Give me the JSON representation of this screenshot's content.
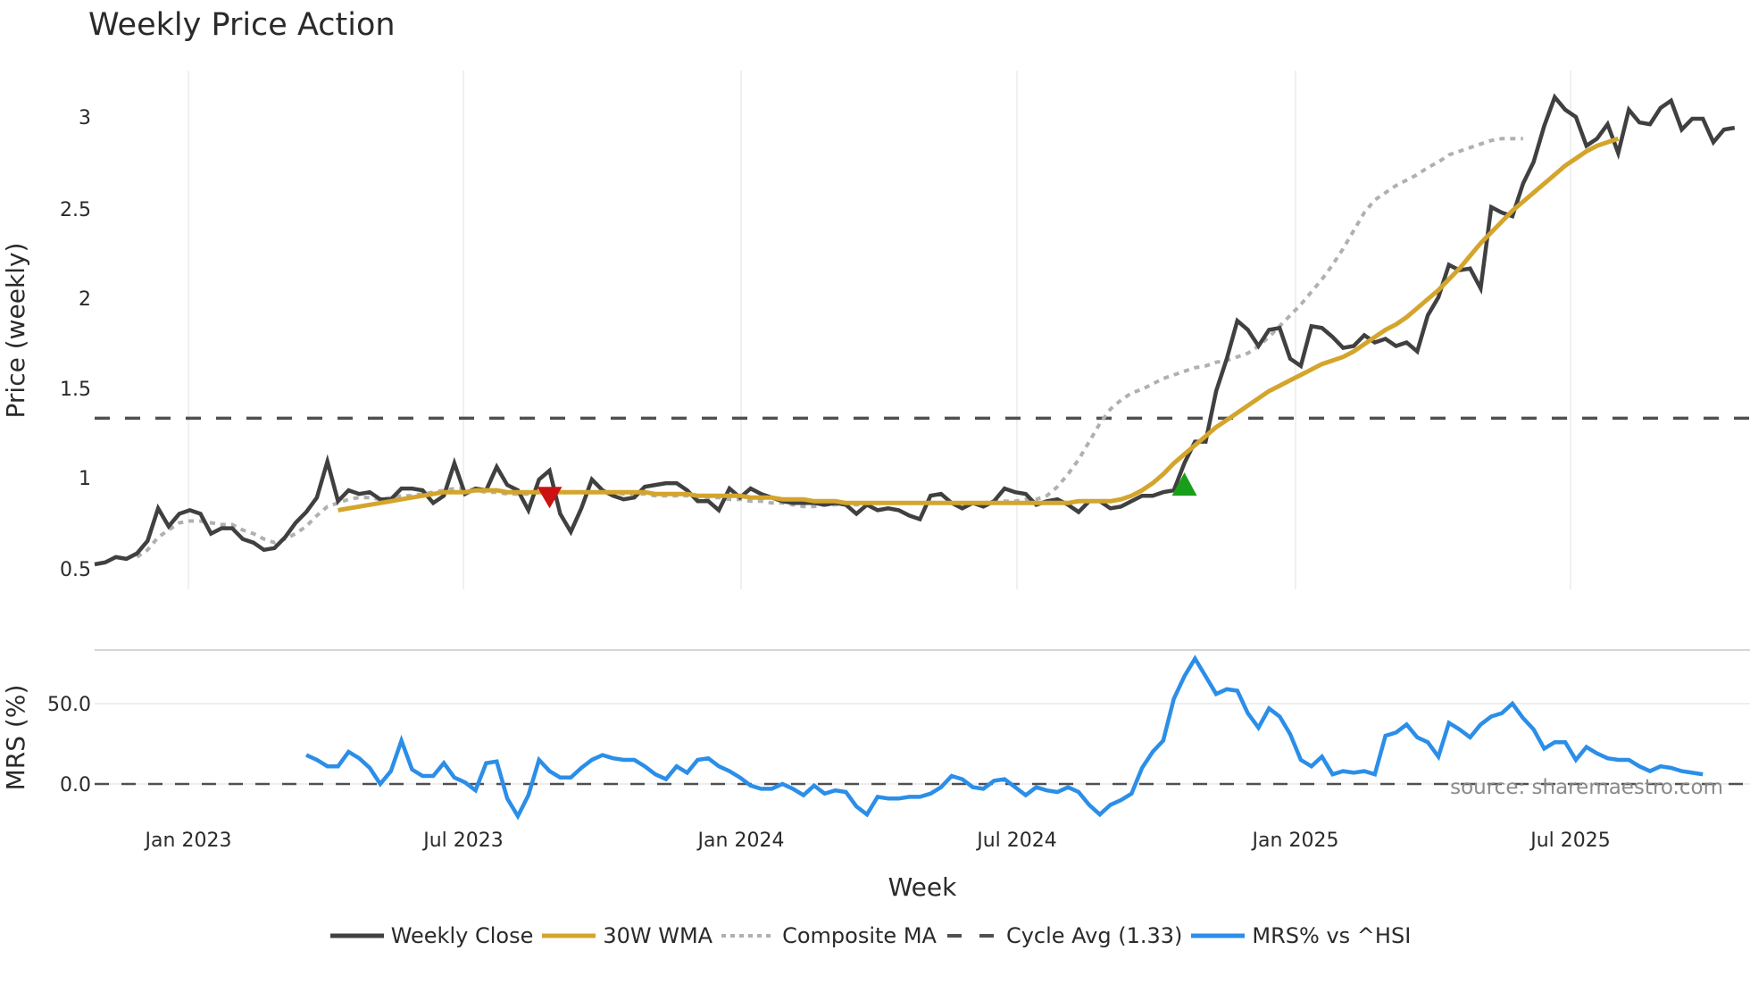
{
  "title": "Weekly Price Action",
  "colors": {
    "weekly_close": "#404040",
    "wma30": "#d4a52c",
    "composite_ma": "#b0b0b0",
    "cycle_avg": "#505050",
    "mrs": "#2b8ee8",
    "sell_marker": "#cc1111",
    "buy_marker": "#1a9e1a",
    "grid": "#eef0f3"
  },
  "axes": {
    "price_ylabel": "Price (weekly)",
    "mrs_ylabel": "MRS (%)",
    "xlabel": "Week",
    "price_ticks": [
      "3",
      "2.5",
      "2",
      "1.5",
      "1",
      "0.5"
    ],
    "mrs_ticks": [
      "50.0",
      "0.0"
    ],
    "x_ticks": [
      "Jan 2023",
      "Jul 2023",
      "Jan 2024",
      "Jul 2024",
      "Jan 2025",
      "Jul 2025"
    ]
  },
  "source_label": "source: sharemaestro.com",
  "legend": {
    "items": [
      {
        "label": "Weekly Close",
        "style": "solid-dark"
      },
      {
        "label": "30W WMA",
        "style": "solid-gold"
      },
      {
        "label": "Composite MA",
        "style": "dotted-gray"
      },
      {
        "label": "Cycle Avg (1.33)",
        "style": "dashed-dark"
      },
      {
        "label": "MRS% vs ^HSI",
        "style": "solid-blue"
      }
    ]
  },
  "chart_data": [
    {
      "type": "line",
      "title": "Weekly Price Action",
      "xlabel": "Week",
      "ylabel": "Price (weekly)",
      "ylim": [
        0.45,
        3.25
      ],
      "x_ticks": [
        "Jan 2023",
        "Jul 2023",
        "Jan 2024",
        "Jul 2024",
        "Jan 2025",
        "Jul 2025"
      ],
      "x_start": "Nov 2022",
      "x_end": "Oct 2025",
      "grid": "vertical",
      "series": [
        {
          "name": "Weekly Close",
          "values": [
            0.52,
            0.53,
            0.56,
            0.55,
            0.58,
            0.65,
            0.83,
            0.73,
            0.8,
            0.82,
            0.8,
            0.69,
            0.72,
            0.72,
            0.66,
            0.64,
            0.6,
            0.61,
            0.67,
            0.75,
            0.81,
            0.89,
            1.09,
            0.87,
            0.93,
            0.91,
            0.92,
            0.88,
            0.88,
            0.94,
            0.94,
            0.93,
            0.86,
            0.9,
            1.08,
            0.91,
            0.94,
            0.93,
            1.06,
            0.96,
            0.93,
            0.82,
            0.99,
            1.04,
            0.8,
            0.7,
            0.83,
            0.99,
            0.93,
            0.9,
            0.88,
            0.89,
            0.95,
            0.96,
            0.97,
            0.97,
            0.93,
            0.87,
            0.87,
            0.82,
            0.94,
            0.89,
            0.94,
            0.91,
            0.89,
            0.87,
            0.86,
            0.86,
            0.86,
            0.85,
            0.86,
            0.85,
            0.8,
            0.85,
            0.82,
            0.83,
            0.82,
            0.79,
            0.77,
            0.9,
            0.91,
            0.86,
            0.83,
            0.86,
            0.84,
            0.87,
            0.94,
            0.92,
            0.91,
            0.85,
            0.87,
            0.88,
            0.85,
            0.81,
            0.87,
            0.87,
            0.83,
            0.84,
            0.87,
            0.9,
            0.9,
            0.92,
            0.93,
            1.08,
            1.2,
            1.2,
            1.48,
            1.66,
            1.87,
            1.82,
            1.73,
            1.82,
            1.83,
            1.66,
            1.62,
            1.84,
            1.83,
            1.78,
            1.72,
            1.73,
            1.79,
            1.75,
            1.77,
            1.73,
            1.75,
            1.7,
            1.9,
            2.0,
            2.18,
            2.15,
            2.16,
            2.05,
            2.5,
            2.47,
            2.45,
            2.63,
            2.75,
            2.95,
            3.11,
            3.04,
            3.0,
            2.84,
            2.88,
            2.96,
            2.8,
            3.04,
            2.97,
            2.96,
            3.05,
            3.09,
            2.93,
            2.99,
            2.99,
            2.86,
            2.93,
            2.94
          ],
          "color": "#404040"
        },
        {
          "name": "30W WMA",
          "start_index": 23,
          "values": [
            0.82,
            0.83,
            0.84,
            0.85,
            0.86,
            0.87,
            0.88,
            0.89,
            0.9,
            0.91,
            0.92,
            0.92,
            0.92,
            0.93,
            0.93,
            0.93,
            0.92,
            0.92,
            0.92,
            0.92,
            0.92,
            0.92,
            0.92,
            0.92,
            0.92,
            0.92,
            0.92,
            0.92,
            0.92,
            0.92,
            0.91,
            0.91,
            0.91,
            0.91,
            0.9,
            0.9,
            0.9,
            0.9,
            0.9,
            0.89,
            0.89,
            0.89,
            0.88,
            0.88,
            0.88,
            0.87,
            0.87,
            0.87,
            0.86,
            0.86,
            0.86,
            0.86,
            0.86,
            0.86,
            0.86,
            0.86,
            0.86,
            0.86,
            0.86,
            0.86,
            0.86,
            0.86,
            0.86,
            0.86,
            0.86,
            0.86,
            0.86,
            0.86,
            0.86,
            0.86,
            0.87,
            0.87,
            0.87,
            0.87,
            0.88,
            0.9,
            0.93,
            0.97,
            1.02,
            1.08,
            1.13,
            1.18,
            1.23,
            1.28,
            1.32,
            1.36,
            1.4,
            1.44,
            1.48,
            1.51,
            1.54,
            1.57,
            1.6,
            1.63,
            1.65,
            1.67,
            1.7,
            1.74,
            1.78,
            1.82,
            1.85,
            1.89,
            1.94,
            1.99,
            2.04,
            2.1,
            2.16,
            2.23,
            2.3,
            2.36,
            2.42,
            2.48,
            2.53,
            2.58,
            2.63,
            2.68,
            2.73,
            2.77,
            2.81,
            2.84,
            2.86,
            2.88
          ],
          "color": "#d4a52c"
        },
        {
          "name": "Composite MA",
          "start_index": 4,
          "values": [
            0.56,
            0.6,
            0.67,
            0.71,
            0.75,
            0.76,
            0.76,
            0.75,
            0.74,
            0.74,
            0.71,
            0.69,
            0.66,
            0.64,
            0.66,
            0.69,
            0.73,
            0.79,
            0.84,
            0.86,
            0.88,
            0.89,
            0.89,
            0.88,
            0.89,
            0.9,
            0.9,
            0.91,
            0.92,
            0.93,
            0.94,
            0.94,
            0.93,
            0.92,
            0.92,
            0.91,
            0.91,
            0.91,
            0.92,
            0.92,
            0.92,
            0.92,
            0.92,
            0.92,
            0.92,
            0.92,
            0.91,
            0.91,
            0.91,
            0.9,
            0.9,
            0.9,
            0.9,
            0.89,
            0.89,
            0.89,
            0.88,
            0.88,
            0.87,
            0.87,
            0.86,
            0.86,
            0.85,
            0.84,
            0.84,
            0.85,
            0.85,
            0.85,
            0.85,
            0.85,
            0.86,
            0.86,
            0.86,
            0.86,
            0.86,
            0.86,
            0.86,
            0.86,
            0.86,
            0.86,
            0.86,
            0.87,
            0.87,
            0.87,
            0.88,
            0.88,
            0.9,
            0.95,
            1.02,
            1.1,
            1.2,
            1.3,
            1.38,
            1.43,
            1.47,
            1.49,
            1.52,
            1.55,
            1.57,
            1.59,
            1.61,
            1.62,
            1.64,
            1.65,
            1.67,
            1.69,
            1.73,
            1.78,
            1.84,
            1.9,
            1.96,
            2.03,
            2.1,
            2.18,
            2.27,
            2.37,
            2.47,
            2.54,
            2.58,
            2.62,
            2.65,
            2.68,
            2.72,
            2.75,
            2.79,
            2.81,
            2.83,
            2.85,
            2.87,
            2.88,
            2.88,
            2.88
          ],
          "color": "#b0b0b0"
        },
        {
          "name": "Cycle Avg (1.33)",
          "values": [
            1.33
          ],
          "color": "#505050",
          "style": "dashed-horizontal"
        }
      ],
      "annotations": [
        {
          "type": "sell-marker",
          "shape": "triangle-down",
          "week_index": 43,
          "price": 0.88,
          "color": "#cc1111"
        },
        {
          "type": "buy-marker",
          "shape": "triangle-up",
          "week_index": 103,
          "price": 0.96,
          "color": "#1a9e1a"
        }
      ]
    },
    {
      "type": "line",
      "title": "MRS% vs ^HSI",
      "xlabel": "Week",
      "ylabel": "MRS (%)",
      "ylim": [
        -28,
        95
      ],
      "y_ticks": [
        "50.0",
        "0.0"
      ],
      "reference_line": 0,
      "series": [
        {
          "name": "MRS% vs ^HSI",
          "start_index": 20,
          "values": [
            18,
            15,
            11,
            11,
            20,
            16,
            10,
            0,
            8,
            27,
            9,
            5,
            5,
            13,
            4,
            1,
            -4,
            13,
            14,
            -9,
            -20,
            -7,
            15,
            8,
            4,
            4,
            10,
            15,
            18,
            16,
            15,
            15,
            11,
            6,
            3,
            11,
            7,
            15,
            16,
            11,
            8,
            4,
            -1,
            -3,
            -3,
            0,
            -3,
            -7,
            -1,
            -6,
            -4,
            -5,
            -14,
            -19,
            -8,
            -9,
            -9,
            -8,
            -8,
            -6,
            -2,
            5,
            3,
            -2,
            -3,
            2,
            3,
            -2,
            -7,
            -2,
            -4,
            -5,
            -2,
            -5,
            -13,
            -19,
            -13,
            -10,
            -6,
            10,
            20,
            27,
            53,
            67,
            78,
            67,
            56,
            59,
            58,
            44,
            35,
            47,
            42,
            31,
            15,
            11,
            17,
            6,
            8,
            7,
            8,
            6,
            30,
            32,
            37,
            29,
            26,
            17,
            38,
            34,
            29,
            37,
            42,
            44,
            50,
            41,
            34,
            22,
            26,
            26,
            15,
            23,
            19,
            16,
            15,
            15,
            11,
            8,
            11,
            10,
            8,
            7,
            6
          ],
          "color": "#2b8ee8"
        }
      ]
    }
  ]
}
